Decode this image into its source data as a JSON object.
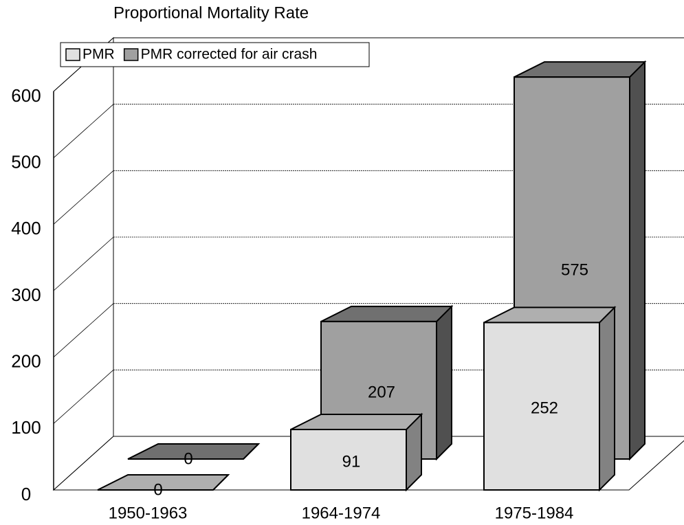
{
  "chart_data": {
    "type": "bar3d",
    "title": "Proportional Mortality Rate",
    "categories": [
      "1950-1963",
      "1964-1974",
      "1975-1984"
    ],
    "series": [
      {
        "name": "PMR",
        "color": "#e0e0e0",
        "values": [
          0,
          91,
          252
        ]
      },
      {
        "name": "PMR corrected for air crash",
        "color": "#a0a0a0",
        "values": [
          0,
          207,
          575
        ]
      }
    ],
    "ylim": [
      0,
      600
    ],
    "yticks": [
      0,
      100,
      200,
      300,
      400,
      500,
      600
    ],
    "grid": true,
    "legend": "top-left"
  }
}
